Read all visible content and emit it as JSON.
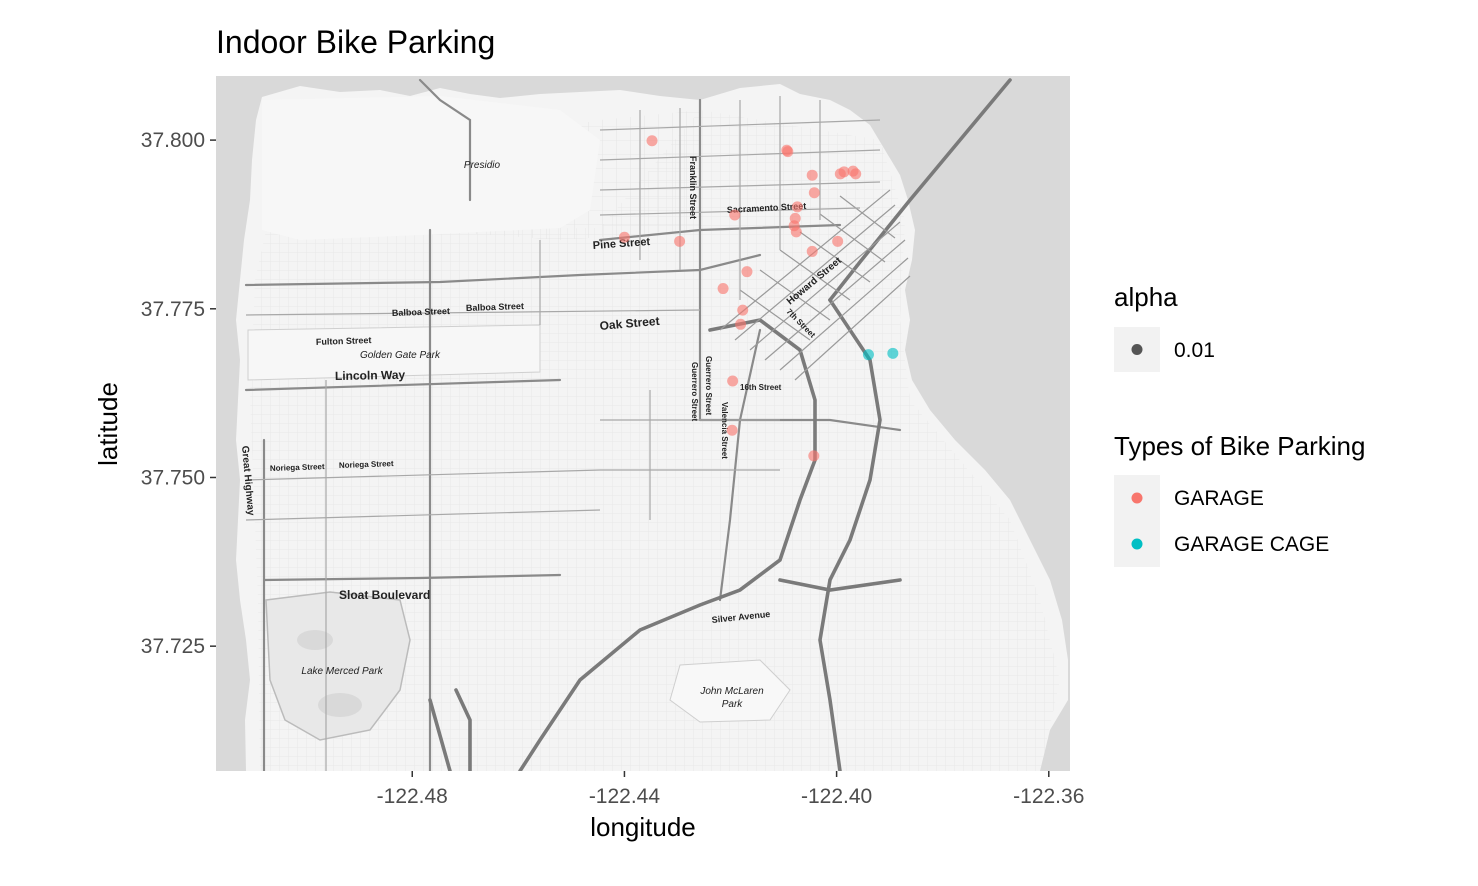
{
  "chart_data": {
    "type": "scatter",
    "title": "Indoor Bike Parking",
    "xlabel": "longitude",
    "ylabel": "latitude",
    "xlim": [
      -122.517,
      -122.356
    ],
    "ylim": [
      37.7065,
      37.8095
    ],
    "x_ticks": [
      -122.48,
      -122.44,
      -122.4,
      -122.36
    ],
    "x_tick_labels": [
      "-122.48",
      "-122.44",
      "-122.40",
      "-122.36"
    ],
    "y_ticks": [
      37.725,
      37.75,
      37.775,
      37.8
    ],
    "y_tick_labels": [
      "37.725",
      "37.750",
      "37.775",
      "37.800"
    ],
    "basemap": "greyscale street map of San Francisco",
    "legend_position": "right",
    "legends": [
      {
        "title": "alpha",
        "entries": [
          {
            "label": "0.01",
            "color": "#000000"
          }
        ]
      },
      {
        "title": "Types of Bike Parking",
        "entries": [
          {
            "label": "GARAGE",
            "color": "#F8766D"
          },
          {
            "label": "GARAGE CAGE",
            "color": "#00BFC4"
          }
        ]
      }
    ],
    "series": [
      {
        "name": "GARAGE",
        "color": "#F8766D",
        "points": [
          [
            -122.4348,
            37.7999
          ],
          [
            -122.4094,
            37.7985
          ],
          [
            -122.4092,
            37.7983
          ],
          [
            -122.4046,
            37.7948
          ],
          [
            -122.3993,
            37.795
          ],
          [
            -122.3986,
            37.7953
          ],
          [
            -122.3969,
            37.7954
          ],
          [
            -122.3964,
            37.795
          ],
          [
            -122.4042,
            37.7922
          ],
          [
            -122.4074,
            37.7901
          ],
          [
            -122.4078,
            37.7884
          ],
          [
            -122.4192,
            37.7889
          ],
          [
            -122.408,
            37.7873
          ],
          [
            -122.4076,
            37.7864
          ],
          [
            -122.44,
            37.7856
          ],
          [
            -122.4296,
            37.785
          ],
          [
            -122.3998,
            37.785
          ],
          [
            -122.4046,
            37.7835
          ],
          [
            -122.4169,
            37.7805
          ],
          [
            -122.4214,
            37.778
          ],
          [
            -122.4177,
            37.7748
          ],
          [
            -122.4181,
            37.7727
          ],
          [
            -122.4196,
            37.7643
          ],
          [
            -122.4197,
            37.757
          ],
          [
            -122.4043,
            37.7532
          ]
        ]
      },
      {
        "name": "GARAGE CAGE",
        "color": "#00BFC4",
        "points": [
          [
            -122.394,
            37.7682
          ],
          [
            -122.3894,
            37.7684
          ]
        ]
      }
    ],
    "map_labels": [
      "Presidio",
      "Franklin Street",
      "Sacramento Street",
      "Pine Street",
      "Howard Street",
      "7th Street",
      "Balboa Street",
      "Balboa Street",
      "Fulton Street",
      "Golden Gate Park",
      "Oak Street",
      "Lincoln Way",
      "Guerrero Street",
      "Guerrero Street",
      "16th Street",
      "Valencia Street",
      "Great Highway",
      "Noriega Street",
      "Noriega Street",
      "Sloat Boulevard",
      "Silver Avenue",
      "Lake Merced Park",
      "John McLaren",
      "Park"
    ]
  }
}
